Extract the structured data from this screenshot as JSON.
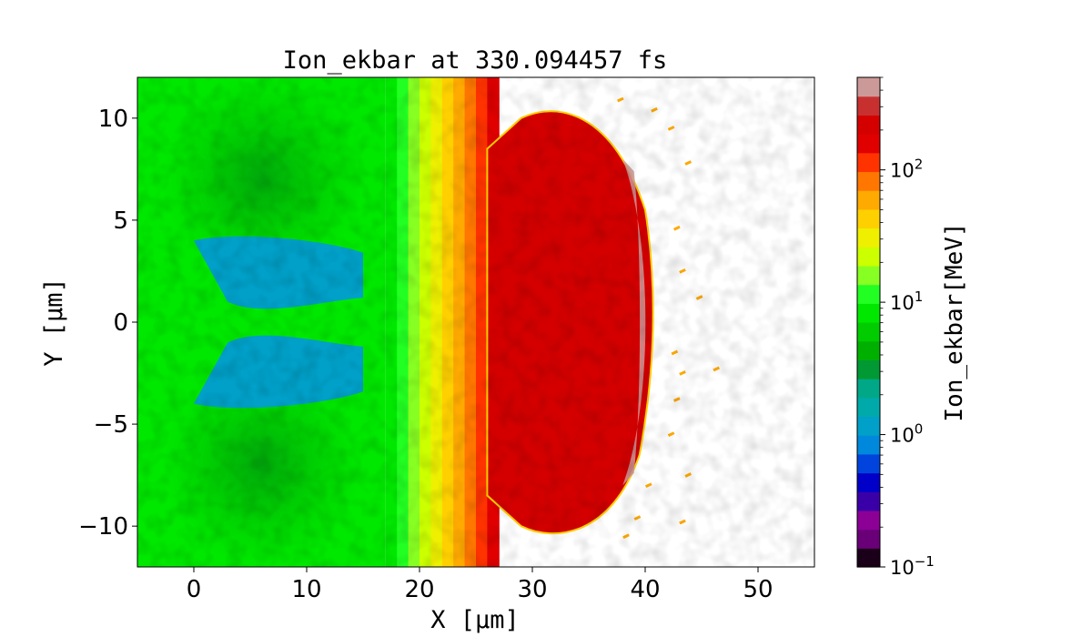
{
  "chart_data": {
    "type": "heatmap",
    "title": "Ion_ekbar at 330.094457 fs",
    "xlabel": "X  [μm]",
    "ylabel": "Y  [μm]",
    "xlim": [
      -5,
      55
    ],
    "ylim": [
      -12,
      12
    ],
    "x_ticks": [
      0,
      10,
      20,
      30,
      40,
      50
    ],
    "y_ticks": [
      -10,
      -5,
      0,
      5,
      10
    ],
    "x_tick_labels": [
      "0",
      "10",
      "20",
      "30",
      "40",
      "50"
    ],
    "y_tick_labels": [
      "−10",
      "−5",
      "0",
      "5",
      "10"
    ],
    "colorbar": {
      "label": "Ion_ekbar[MeV]",
      "scale": "log",
      "range": [
        0.1,
        500
      ],
      "ticks": [
        0.1,
        1,
        10,
        100
      ],
      "tick_labels": [
        {
          "base": "10",
          "exp": "−1"
        },
        {
          "base": "10",
          "exp": "0"
        },
        {
          "base": "10",
          "exp": "1"
        },
        {
          "base": "10",
          "exp": "2"
        }
      ],
      "colormap": [
        "#1a0018",
        "#6a0078",
        "#8c0096",
        "#3a00a8",
        "#0000c8",
        "#0044dd",
        "#0088dd",
        "#00a0c8",
        "#00aaaa",
        "#00a888",
        "#009933",
        "#00b000",
        "#00cc00",
        "#00e800",
        "#22ff22",
        "#88ff22",
        "#ccff00",
        "#eef000",
        "#ffd000",
        "#ffaa00",
        "#ff7700",
        "#ff3300",
        "#e00000",
        "#d40000",
        "#c83030",
        "#cc9999"
      ]
    },
    "regions": [
      {
        "name": "low-energy lobe upper",
        "x_range": [
          0,
          15
        ],
        "y_range": [
          1,
          4
        ],
        "value_mev": 1
      },
      {
        "name": "low-energy lobe lower",
        "x_range": [
          0,
          15
        ],
        "y_range": [
          -4,
          -1
        ],
        "value_mev": 1
      },
      {
        "name": "bulk plasma",
        "x_range": [
          -5,
          17
        ],
        "y_range": [
          -12,
          12
        ],
        "value_mev": 8
      },
      {
        "name": "transition band",
        "x_range": [
          17,
          27
        ],
        "y_range": [
          -12,
          12
        ],
        "value_mev": 40
      },
      {
        "name": "accelerated shell",
        "x_range": [
          26,
          41
        ],
        "y_range": [
          -10.5,
          10.5
        ],
        "value_mev": 250
      },
      {
        "name": "shell edge",
        "x_range": [
          37,
          41
        ],
        "y_range": [
          -8,
          8
        ],
        "value_mev": 450
      }
    ]
  }
}
